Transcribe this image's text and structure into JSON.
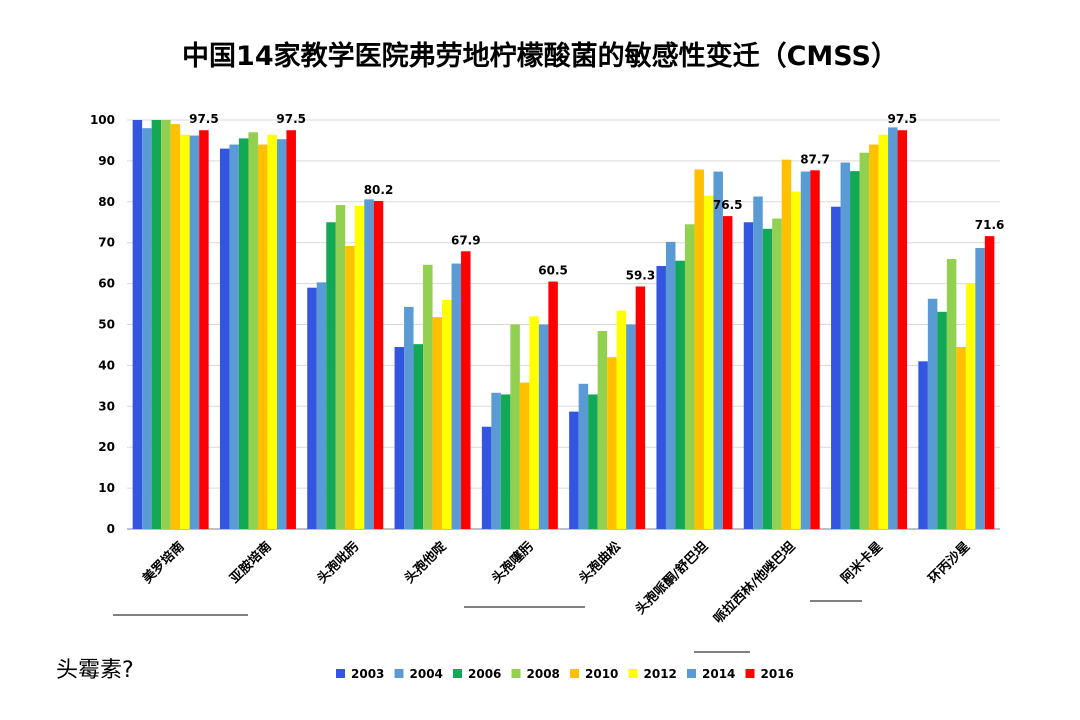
{
  "title": "中国14家教学医院弗劳地柠檬酸菌的敏感性变迁（CMSS）",
  "footnote": "头霉素?",
  "chart_data": {
    "type": "bar",
    "ylim": [
      0,
      100
    ],
    "yticks": [
      0,
      10,
      20,
      30,
      40,
      50,
      60,
      70,
      80,
      90,
      100
    ],
    "grid": true,
    "legend_position": "bottom",
    "categories": [
      "美罗培南",
      "亚胺培南",
      "头孢吡肟",
      "头孢他啶",
      "头孢噻肟",
      "头孢曲松",
      "头孢哌酮/舒巴坦",
      "哌拉西林/他唑巴坦",
      "阿米卡星",
      "环丙沙星"
    ],
    "series": [
      {
        "name": "2003",
        "color": "#3355e0",
        "values": [
          100,
          93,
          59,
          44.5,
          25,
          28.7,
          64.3,
          75,
          78.8,
          41
        ]
      },
      {
        "name": "2004",
        "color": "#5b9bd5",
        "values": [
          98,
          94,
          60.3,
          54.3,
          33.3,
          35.5,
          70.2,
          81.3,
          89.6,
          56.3
        ]
      },
      {
        "name": "2006",
        "color": "#13a855",
        "values": [
          100,
          95.5,
          75,
          45.2,
          32.9,
          32.9,
          65.6,
          73.4,
          87.5,
          53.1
        ]
      },
      {
        "name": "2008",
        "color": "#92d050",
        "values": [
          100,
          97,
          79.2,
          64.6,
          50,
          48.4,
          74.5,
          75.9,
          92,
          66
        ]
      },
      {
        "name": "2010",
        "color": "#ffc000",
        "values": [
          99,
          94,
          69.2,
          51.8,
          35.8,
          42,
          87.9,
          90.3,
          94,
          44.5
        ]
      },
      {
        "name": "2012",
        "color": "#ffff00",
        "values": [
          96.4,
          96.4,
          79,
          56,
          52,
          53.4,
          81.5,
          82.5,
          96.4,
          60
        ]
      },
      {
        "name": "2014",
        "color": "#5b9bd5",
        "values": [
          96.2,
          95.3,
          80.6,
          64.9,
          50,
          50,
          87.4,
          87.4,
          98.2,
          68.7
        ]
      },
      {
        "name": "2016",
        "color": "#ff0000",
        "values": [
          97.5,
          97.5,
          80.2,
          67.9,
          60.5,
          59.3,
          76.5,
          87.7,
          97.5,
          71.6
        ]
      }
    ],
    "data_labels": [
      "97.5",
      "97.5",
      "80.2",
      "67.9",
      "60.5",
      "59.3",
      "76.5",
      "87.7",
      "97.5",
      "71.6"
    ],
    "underlined_categories": [
      "美罗培南",
      "亚胺培南",
      "头孢噻肟",
      "头孢曲松",
      "哌拉西林/他唑巴坦",
      "阿米卡星"
    ]
  }
}
